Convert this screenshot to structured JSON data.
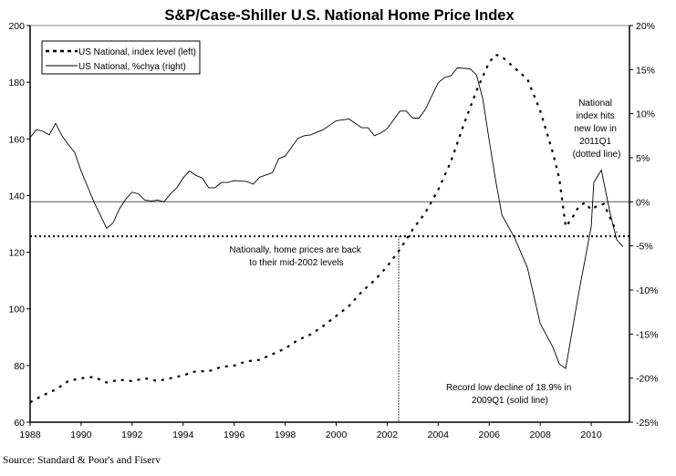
{
  "chart_data": {
    "type": "line",
    "title": "S&P/Case-Shiller U.S. National Home Price Index",
    "source": "Source: Standard & Poor's and Fiserv",
    "x_axis": {
      "range": [
        1988,
        2011.5
      ],
      "ticks": [
        1988,
        1990,
        1992,
        1994,
        1996,
        1998,
        2000,
        2002,
        2004,
        2006,
        2008,
        2010
      ],
      "tick_labels": [
        "1988",
        "1990",
        "1992",
        "1994",
        "1996",
        "1998",
        "2000",
        "2002",
        "2004",
        "2006",
        "2008",
        "2010"
      ]
    },
    "y_left": {
      "range": [
        60,
        200
      ],
      "ticks": [
        60,
        80,
        100,
        120,
        140,
        160,
        180,
        200
      ],
      "tick_labels": [
        "60",
        "80",
        "100",
        "120",
        "140",
        "160",
        "180",
        "200"
      ]
    },
    "y_right": {
      "range": [
        -25,
        20
      ],
      "ticks": [
        -25,
        -20,
        -15,
        -10,
        -5,
        0,
        5,
        10,
        15,
        20
      ],
      "tick_labels": [
        "-25%",
        "-20%",
        "-15%",
        "-10%",
        "-5%",
        "0%",
        "5%",
        "10%",
        "15%",
        "20%"
      ]
    },
    "legend": {
      "placement": "top-left",
      "entries": [
        {
          "label": "US National, index level (left)",
          "style": "dashed"
        },
        {
          "label": "US National, %chya (right)",
          "style": "solid"
        }
      ]
    },
    "series": [
      {
        "name": "US National, index level (left)",
        "axis": "left",
        "style": "dashed",
        "x": [
          1988.0,
          1988.5,
          1989.0,
          1989.5,
          1990.0,
          1990.5,
          1991.0,
          1991.5,
          1992.0,
          1992.5,
          1993.0,
          1993.5,
          1994.0,
          1994.5,
          1995.0,
          1995.5,
          1996.0,
          1996.5,
          1997.0,
          1997.5,
          1998.0,
          1998.5,
          1999.0,
          1999.5,
          2000.0,
          2000.5,
          2001.0,
          2001.5,
          2002.0,
          2002.5,
          2003.0,
          2003.5,
          2004.0,
          2004.5,
          2005.0,
          2005.5,
          2006.0,
          2006.25,
          2006.5,
          2007.0,
          2007.5,
          2008.0,
          2008.5,
          2008.75,
          2009.0,
          2009.25,
          2009.5,
          2009.75,
          2010.0,
          2010.25,
          2010.5,
          2010.75,
          2011.0
        ],
        "values": [
          67,
          69.5,
          71.5,
          74.5,
          75.5,
          76,
          74,
          75,
          74.5,
          75.5,
          74.5,
          75.5,
          76.5,
          78,
          78,
          79.5,
          80,
          81.5,
          82,
          84,
          86,
          89,
          91,
          94,
          97.5,
          101,
          106,
          110,
          115,
          121,
          128,
          134,
          142,
          152,
          165,
          177,
          187,
          189.7,
          189,
          185,
          181,
          170,
          155,
          146,
          129,
          132,
          136,
          137.5,
          135,
          136.5,
          137,
          132,
          127
        ]
      },
      {
        "name": "US National, %chya (right)",
        "axis": "right",
        "style": "solid",
        "x": [
          1988.0,
          1988.25,
          1988.5,
          1988.75,
          1989.0,
          1989.25,
          1989.5,
          1989.75,
          1990.0,
          1990.5,
          1991.0,
          1991.25,
          1991.5,
          1991.75,
          1992.0,
          1992.25,
          1992.5,
          1992.75,
          1993.0,
          1993.25,
          1993.5,
          1993.75,
          1994.0,
          1994.25,
          1994.5,
          1994.75,
          1995.0,
          1995.25,
          1995.5,
          1995.75,
          1996.0,
          1996.5,
          1996.75,
          1997.0,
          1997.5,
          1997.75,
          1998.0,
          1998.5,
          1998.75,
          1999.0,
          1999.5,
          2000.0,
          2000.5,
          2001.0,
          2001.25,
          2001.5,
          2001.75,
          2002.0,
          2002.5,
          2002.75,
          2003.0,
          2003.25,
          2003.5,
          2004.0,
          2004.25,
          2004.5,
          2004.75,
          2005.25,
          2005.5,
          2005.75,
          2006.0,
          2006.25,
          2006.5,
          2007.0,
          2007.5,
          2008.0,
          2008.5,
          2008.75,
          2009.0,
          2009.5,
          2010.0,
          2010.1,
          2010.4,
          2010.75,
          2011.0,
          2011.25
        ],
        "values": [
          7.3,
          8.2,
          8.0,
          7.6,
          8.9,
          7.5,
          6.5,
          5.6,
          3.5,
          0,
          -3.0,
          -2.4,
          -0.8,
          0.3,
          1.1,
          0.9,
          0.2,
          0.1,
          0.2,
          0,
          0.9,
          1.6,
          2.7,
          3.5,
          3.0,
          2.7,
          1.6,
          1.6,
          2.2,
          2.2,
          2.4,
          2.3,
          2.0,
          2.8,
          3.3,
          4.9,
          5.2,
          7.2,
          7.5,
          7.6,
          8.2,
          9.2,
          9.4,
          8.4,
          8.4,
          7.5,
          7.8,
          8.3,
          10.3,
          10.3,
          9.5,
          9.5,
          10.5,
          13.5,
          14.1,
          14.3,
          15.2,
          15.1,
          14.4,
          11.7,
          7.0,
          2.5,
          -1.5,
          -4.1,
          -7.5,
          -13.8,
          -16.5,
          -18.4,
          -18.9,
          -10.5,
          -2.8,
          2.2,
          3.6,
          -1.4,
          -4.3,
          -5.1
        ]
      }
    ],
    "reference_lines": [
      {
        "name": "zero-percent-line",
        "axis": "right",
        "y": 0,
        "style": "solid-gray"
      },
      {
        "name": "new-low-level-line",
        "axis": "left",
        "y": 125.6,
        "style": "dotted"
      },
      {
        "name": "mid-2002-marker",
        "x": 2002.45,
        "style": "dotted-vertical"
      }
    ],
    "annotations": [
      {
        "name": "annotation-mid-2002",
        "lines": [
          "Nationally, home prices are back",
          "to their mid-2002 levels"
        ]
      },
      {
        "name": "annotation-new-low",
        "lines": [
          "National",
          "index hits",
          "new low in",
          "2011Q1",
          "(dotted line)"
        ]
      },
      {
        "name": "annotation-record-low",
        "lines": [
          "Record low decline of 18.9% in",
          "2009Q1 (solid line)"
        ]
      }
    ]
  }
}
